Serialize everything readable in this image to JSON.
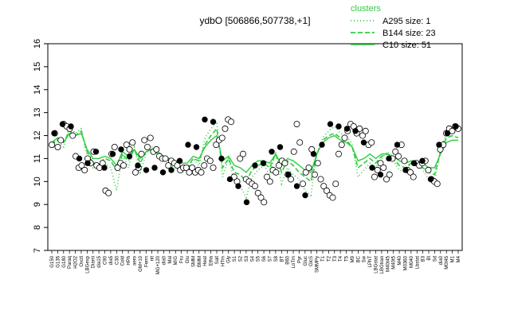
{
  "chart_data": {
    "type": "line",
    "title": "ydbO [506866,507738,+1]",
    "xlabel": "",
    "ylabel": "",
    "ylim": [
      7,
      16
    ],
    "yticks": [
      7,
      8,
      9,
      10,
      11,
      12,
      13,
      14,
      15,
      16
    ],
    "x_tick_labels": [
      "G150",
      "G135",
      "G180",
      "Paraq",
      "H2O2",
      "Oxctl",
      "LBGexp",
      "Diami",
      "dia15",
      "C90",
      "dia5",
      "C30",
      "Cold",
      "HPh",
      "aero",
      "GM+10",
      "Ferm",
      "nit",
      "MG+120",
      "dia0",
      "Mal",
      "M/G",
      "Fru",
      "Glu",
      "SMM",
      "BMM",
      "Heat",
      "Etha",
      "Salt",
      "HTm",
      "Gly",
      "S1",
      "S2",
      "S3",
      "S4",
      "S5",
      "S6",
      "S7",
      "S8",
      "BT",
      "B60",
      "LoTm",
      "Pyr",
      "Gluc",
      "GlcS",
      "SMMPy",
      "T1",
      "T2",
      "T3",
      "T4",
      "T5",
      "M9",
      "BC",
      "Sw",
      "LPhT",
      "LBGstat",
      "LBGtran",
      "M40t45",
      "M40t5",
      "M40",
      "M0360",
      "M040",
      "Lbstat",
      "B3",
      "BI",
      "Sd",
      "dia0",
      "M0t45",
      "M1",
      "M4"
    ],
    "clusters_title": "clusters",
    "legend": [
      {
        "name": "A295 size: 1",
        "style": "dotted"
      },
      {
        "name": "B144 size: 23",
        "style": "dashed"
      },
      {
        "name": "C10 size: 51",
        "style": "solid"
      }
    ],
    "series": [
      {
        "name": "A295",
        "values": [
          11.6,
          11.8,
          11.5,
          12.4,
          12.1,
          12.3,
          11.1,
          10.6,
          10.7,
          10.8,
          10.6,
          9.6,
          11.2,
          10.6,
          11.5,
          10.4,
          11.2,
          11.5,
          11.3,
          10.9,
          10.7,
          10.6,
          10.4,
          10.5,
          11.0,
          10.7,
          11.9,
          12.3,
          12.6,
          10.2,
          11.0,
          10.0,
          9.8,
          9.3,
          10.2,
          10.5,
          10.7,
          10.3,
          11.3,
          9.9,
          10.6,
          10.3,
          10.1,
          9.6,
          9.4,
          11.2,
          11.9,
          12.2,
          12.4,
          12.1,
          12.0,
          11.6,
          10.2,
          10.5,
          10.8,
          10.6,
          11.0,
          11.3,
          10.9,
          10.5,
          10.4,
          10.8,
          10.8,
          10.5,
          10.1,
          10.0,
          11.4,
          12.1,
          12.3,
          12.2
        ]
      },
      {
        "name": "B144",
        "values": [
          11.6,
          11.9,
          11.7,
          12.2,
          12.0,
          12.2,
          11.3,
          10.8,
          10.8,
          11.0,
          10.9,
          10.5,
          11.2,
          10.9,
          11.4,
          10.8,
          11.3,
          11.4,
          11.2,
          11.0,
          10.9,
          10.8,
          10.6,
          10.6,
          11.0,
          10.9,
          11.6,
          12.0,
          12.3,
          10.6,
          11.0,
          10.4,
          10.3,
          10.0,
          10.5,
          10.7,
          10.8,
          10.6,
          11.2,
          10.4,
          10.9,
          10.7,
          10.4,
          10.2,
          10.0,
          11.2,
          11.8,
          12.0,
          12.1,
          11.9,
          11.8,
          11.5,
          10.6,
          10.8,
          11.0,
          10.8,
          11.1,
          11.2,
          11.0,
          10.7,
          10.6,
          10.8,
          10.8,
          10.6,
          10.4,
          10.3,
          11.3,
          11.9,
          12.0,
          11.9
        ]
      },
      {
        "name": "C10",
        "values": [
          11.7,
          11.9,
          11.7,
          12.1,
          12.0,
          12.1,
          11.4,
          11.0,
          11.0,
          11.1,
          11.0,
          10.7,
          11.3,
          11.1,
          11.4,
          11.0,
          11.3,
          11.4,
          11.3,
          11.1,
          11.0,
          10.9,
          10.8,
          10.8,
          11.1,
          11.0,
          11.5,
          11.8,
          12.0,
          10.9,
          11.1,
          10.7,
          10.6,
          10.4,
          10.7,
          10.9,
          10.9,
          10.8,
          11.2,
          10.7,
          11.0,
          10.9,
          10.7,
          10.5,
          10.4,
          11.2,
          11.7,
          11.9,
          12.0,
          11.8,
          11.7,
          11.5,
          10.9,
          11.0,
          11.2,
          11.0,
          11.2,
          11.2,
          11.1,
          10.9,
          10.8,
          10.9,
          10.9,
          10.8,
          10.6,
          10.6,
          11.2,
          11.7,
          11.8,
          11.8
        ]
      }
    ],
    "points": [
      11.6,
      12.1,
      11.5,
      11.8,
      12.5,
      12.4,
      12.3,
      12.0,
      11.1,
      10.6,
      10.7,
      10.5,
      11.0,
      10.8,
      11.3,
      10.7,
      10.6,
      10.8,
      9.6,
      9.5,
      11.2,
      11.5,
      10.6,
      10.8,
      10.7,
      11.6,
      11.4,
      11.7,
      10.4,
      10.6,
      11.2,
      11.8,
      11.5,
      11.9,
      11.3,
      11.4,
      11.1,
      11.0,
      11.0,
      10.7,
      10.9,
      10.8,
      10.7,
      10.5,
      10.6,
      10.6,
      10.4,
      10.6,
      10.4,
      10.5,
      10.4,
      10.7,
      11.0,
      10.9,
      10.6,
      11.6,
      11.8,
      11.9,
      12.3,
      12.7,
      12.6,
      10.2,
      10.0,
      11.0,
      11.2,
      10.1,
      10.0,
      9.9,
      9.8,
      9.5,
      9.3,
      9.1,
      10.2,
      10.0,
      10.5,
      10.4,
      10.7,
      10.9,
      10.8,
      10.3,
      10.1,
      11.3,
      12.5,
      11.7,
      9.9,
      10.4,
      10.6,
      11.4,
      10.3,
      10.8,
      10.1,
      9.8,
      9.6,
      9.4,
      9.3,
      9.9,
      11.2,
      11.6,
      11.9,
      12.2,
      12.5,
      12.4,
      12.1,
      12.3,
      12.0,
      12.2,
      11.6,
      11.7,
      10.2,
      10.5,
      10.8,
      10.6,
      10.1,
      10.3,
      11.0,
      11.3,
      11.1,
      11.6,
      10.9,
      10.5,
      10.4,
      10.2,
      10.8,
      10.7,
      10.8,
      10.9,
      10.5,
      10.1,
      10.0,
      9.9,
      11.4,
      11.6,
      12.1,
      12.3,
      12.2,
      12.4,
      12.3
    ],
    "filled_points": [
      12.1,
      12.5,
      12.4,
      11.0,
      10.8,
      11.3,
      10.6,
      11.2,
      11.4,
      11.1,
      10.7,
      10.5,
      10.6,
      10.4,
      10.5,
      10.9,
      11.6,
      11.5,
      12.7,
      12.6,
      11.0,
      10.1,
      9.8,
      9.1,
      10.7,
      10.8,
      11.3,
      11.5,
      10.3,
      9.8,
      9.4,
      11.2,
      11.6,
      12.5,
      12.4,
      12.3,
      12.2,
      11.7,
      10.6,
      10.3,
      11.0,
      11.6,
      10.5,
      10.8,
      10.9,
      10.1,
      11.6,
      12.1,
      12.4
    ]
  }
}
